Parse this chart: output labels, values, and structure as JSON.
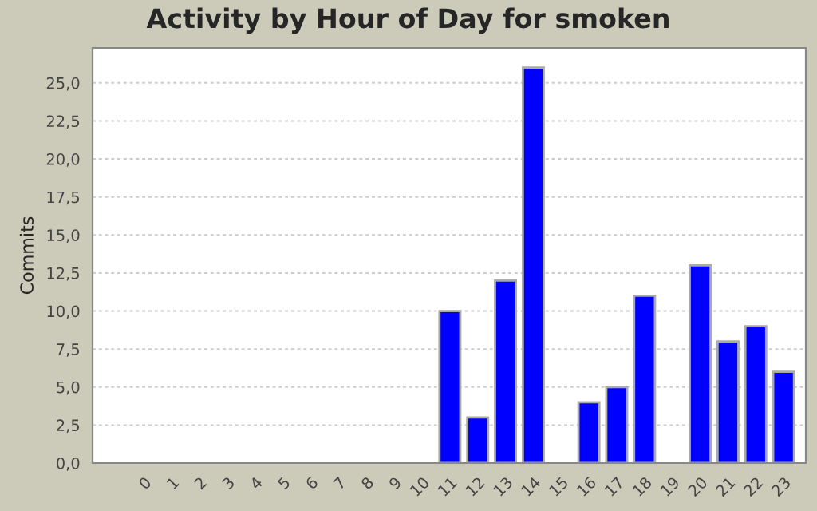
{
  "chart_data": {
    "type": "bar",
    "title": "Activity by Hour of Day for smoken",
    "ylabel": "Commits",
    "categories": [
      "0",
      "1",
      "2",
      "3",
      "4",
      "5",
      "6",
      "7",
      "8",
      "9",
      "10",
      "11",
      "12",
      "13",
      "14",
      "15",
      "16",
      "17",
      "18",
      "19",
      "20",
      "21",
      "22",
      "23"
    ],
    "values": [
      0,
      0,
      0,
      0,
      0,
      0,
      0,
      0,
      0,
      0,
      0,
      10,
      3,
      12,
      26,
      0,
      4,
      5,
      11,
      0,
      13,
      8,
      9,
      6
    ],
    "color": "#0000ff",
    "ylim": [
      0,
      27.3
    ],
    "yticks": [
      {
        "value": 0,
        "label": "0,0"
      },
      {
        "value": 2.5,
        "label": "2,5"
      },
      {
        "value": 5,
        "label": "5,0"
      },
      {
        "value": 7.5,
        "label": "7,5"
      },
      {
        "value": 10,
        "label": "10,0"
      },
      {
        "value": 12.5,
        "label": "12,5"
      },
      {
        "value": 15,
        "label": "15,0"
      },
      {
        "value": 17.5,
        "label": "17,5"
      },
      {
        "value": 20,
        "label": "20,0"
      },
      {
        "value": 22.5,
        "label": "22,5"
      },
      {
        "value": 25,
        "label": "25,0"
      }
    ],
    "grid": "y"
  }
}
